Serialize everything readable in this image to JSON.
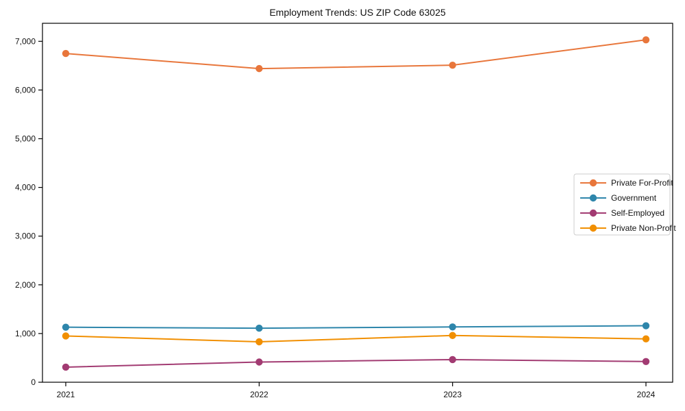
{
  "title": "Employment Trends: US ZIP Code 63025",
  "chart_data": {
    "type": "line",
    "title": "Employment Trends: US ZIP Code 63025",
    "x": [
      2021,
      2022,
      2023,
      2024
    ],
    "x_tick_labels": [
      "2021",
      "2022",
      "2023",
      "2024"
    ],
    "series": [
      {
        "name": "Private For-Profit",
        "color": "#E8763B",
        "values": [
          6750,
          6440,
          6510,
          7030
        ]
      },
      {
        "name": "Government",
        "color": "#2E86AB",
        "values": [
          1130,
          1110,
          1135,
          1160
        ]
      },
      {
        "name": "Self-Employed",
        "color": "#A23B72",
        "values": [
          310,
          415,
          465,
          425
        ]
      },
      {
        "name": "Private Non-Profit",
        "color": "#F18F01",
        "values": [
          950,
          830,
          960,
          890
        ]
      }
    ],
    "xlabel": "",
    "ylabel": "",
    "ylim": [
      0,
      7370
    ],
    "yticks": [
      0,
      1000,
      2000,
      3000,
      4000,
      5000,
      6000,
      7000
    ],
    "ytick_labels": [
      "0",
      "1,000",
      "2,000",
      "3,000",
      "4,000",
      "5,000",
      "6,000",
      "7,000"
    ],
    "grid": false,
    "marker": "circle",
    "legend_position": "right-middle",
    "legend_order": [
      "Private For-Profit",
      "Government",
      "Self-Employed",
      "Private Non-Profit"
    ],
    "axis_color": "#000000",
    "background_color": "#ffffff",
    "legend_border_color": "#cccccc"
  }
}
